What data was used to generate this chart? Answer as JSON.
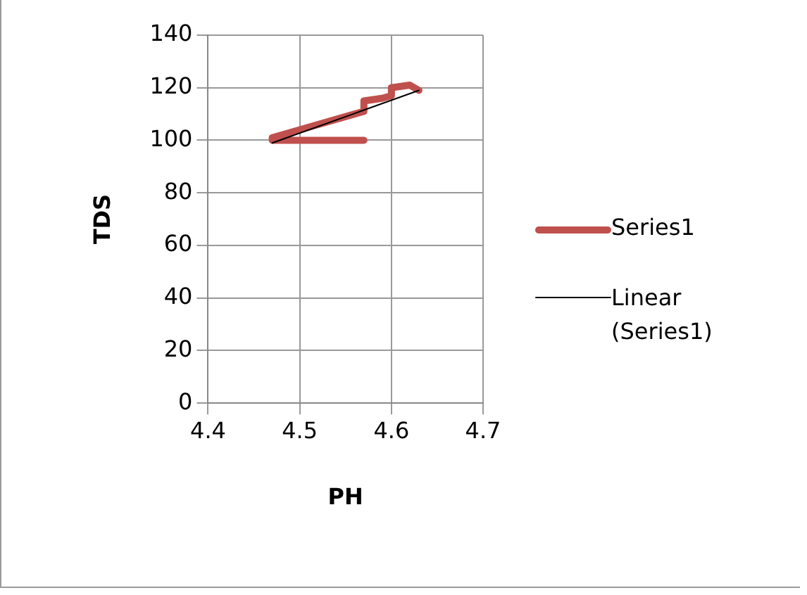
{
  "chart_data": {
    "type": "line",
    "xlabel": "PH",
    "ylabel": "TDS",
    "xlim": [
      4.4,
      4.7
    ],
    "xticks": [
      4.4,
      4.5,
      4.6,
      4.7
    ],
    "ylim": [
      0,
      140
    ],
    "yticks": [
      0,
      20,
      40,
      60,
      80,
      100,
      120,
      140
    ],
    "grid": true,
    "legend": "right",
    "marker": "none",
    "line_style": "solid",
    "series": [
      {
        "name": "Series1",
        "color": "#c0504d",
        "x": [
          4.57,
          4.47,
          4.47,
          4.57,
          4.57,
          4.59,
          4.6,
          4.6,
          4.62,
          4.63
        ],
        "values": [
          100,
          100,
          101,
          111,
          115,
          116,
          117,
          120,
          121,
          119
        ]
      },
      {
        "name": "Linear (Series1)",
        "color": "#000000",
        "x": [
          4.47,
          4.63
        ],
        "values": [
          99,
          119
        ]
      }
    ]
  }
}
